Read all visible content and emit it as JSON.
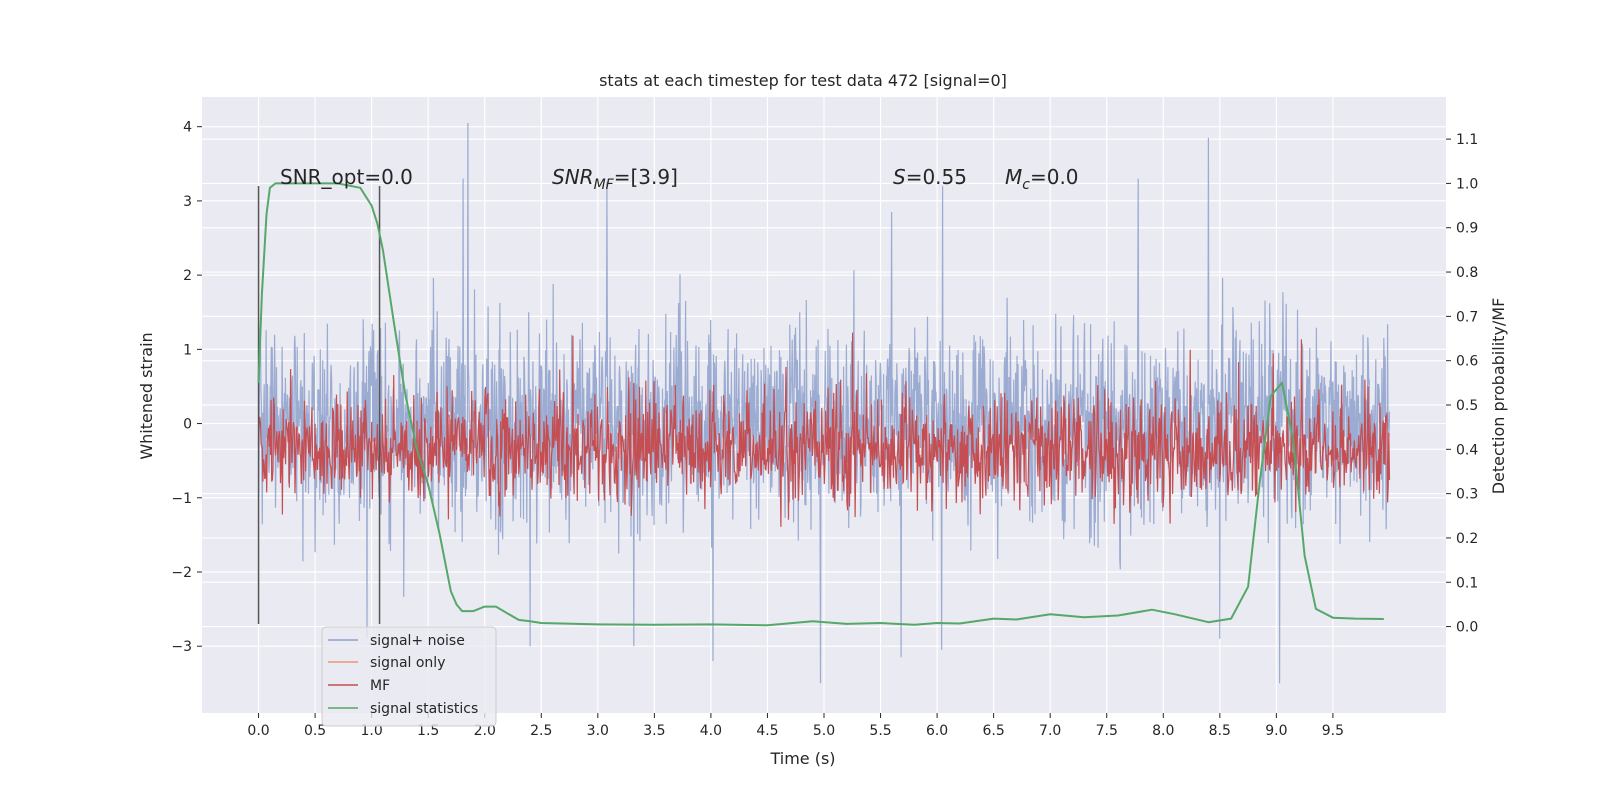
{
  "chart_data": {
    "type": "line",
    "title": "stats at each timestep for test data 472 [signal=0]",
    "xlabel": "Time (s)",
    "ylabel": "Whitened strain",
    "y2label": "Detection probability/MF",
    "xlim": [
      -0.5,
      10.5
    ],
    "ylim": [
      -3.9,
      4.4
    ],
    "y2lim": [
      -0.195,
      1.195
    ],
    "x_ticks": [
      "0.0",
      "0.5",
      "1.0",
      "1.5",
      "2.0",
      "2.5",
      "3.0",
      "3.5",
      "4.0",
      "4.5",
      "5.0",
      "5.5",
      "6.0",
      "6.5",
      "7.0",
      "7.5",
      "8.0",
      "8.5",
      "9.0",
      "9.5"
    ],
    "y_ticks": [
      "−3",
      "−2",
      "−1",
      "0",
      "1",
      "2",
      "3",
      "4"
    ],
    "y2_ticks": [
      "0.0",
      "0.1",
      "0.2",
      "0.3",
      "0.4",
      "0.5",
      "0.6",
      "0.7",
      "0.8",
      "0.9",
      "1.0",
      "1.1"
    ],
    "grid": true,
    "legend_position": "lower-left",
    "legend": [
      "signal+ noise",
      "signal only",
      "MF",
      "signal statistics"
    ],
    "colors": {
      "signal_noise": "#8da0cb",
      "signal_only": "#e9967a",
      "mf": "#c44e52",
      "signal_statistics": "#55a868",
      "background": "#eaeaf2",
      "grid": "#ffffff",
      "vline": "#555555"
    },
    "annotations": {
      "snr_opt": "SNR_opt=0.0",
      "snr_mf_base": "SNR",
      "snr_mf_sub": "MF",
      "snr_mf_value": "=[3.9]",
      "s_var": "S",
      "s_value": "=0.55",
      "mc_var": "M",
      "mc_sub": "c",
      "mc_value": "=0.0"
    },
    "vlines": [
      0.0,
      1.07
    ],
    "vline_yrange": [
      -2.7,
      3.2
    ],
    "series": [
      {
        "name": "signal statistics",
        "axis": "right",
        "x": [
          0.0,
          0.03,
          0.07,
          0.1,
          0.15,
          0.2,
          0.3,
          0.5,
          0.7,
          0.9,
          1.0,
          1.05,
          1.1,
          1.2,
          1.25,
          1.3,
          1.4,
          1.5,
          1.6,
          1.7,
          1.75,
          1.8,
          1.9,
          2.0,
          2.1,
          2.2,
          2.3,
          2.4,
          2.5,
          3.0,
          3.5,
          4.0,
          4.5,
          4.9,
          5.2,
          5.5,
          5.8,
          6.0,
          6.2,
          6.5,
          6.7,
          7.0,
          7.3,
          7.6,
          7.9,
          8.1,
          8.4,
          8.6,
          8.75,
          8.85,
          8.95,
          9.05,
          9.15,
          9.25,
          9.35,
          9.5,
          9.7,
          9.95
        ],
        "y": [
          0.55,
          0.75,
          0.93,
          0.99,
          1.0,
          1.0,
          1.0,
          1.0,
          1.0,
          0.99,
          0.95,
          0.91,
          0.85,
          0.68,
          0.6,
          0.52,
          0.4,
          0.32,
          0.21,
          0.08,
          0.05,
          0.035,
          0.035,
          0.045,
          0.045,
          0.03,
          0.015,
          0.012,
          0.008,
          0.005,
          0.004,
          0.005,
          0.003,
          0.012,
          0.006,
          0.008,
          0.004,
          0.008,
          0.007,
          0.018,
          0.016,
          0.028,
          0.021,
          0.025,
          0.038,
          0.028,
          0.01,
          0.018,
          0.09,
          0.32,
          0.52,
          0.55,
          0.42,
          0.16,
          0.04,
          0.02,
          0.018,
          0.017
        ]
      }
    ],
    "signal_noise_envelope": {
      "x_range": [
        0.0,
        10.0
      ],
      "typical_range": [
        -1.5,
        1.5
      ],
      "spikes": [
        {
          "x": 1.85,
          "y": 4.05
        },
        {
          "x": 1.81,
          "y": 3.3
        },
        {
          "x": 3.08,
          "y": 3.25
        },
        {
          "x": 6.05,
          "y": 3.2
        },
        {
          "x": 8.4,
          "y": 3.85
        },
        {
          "x": 7.78,
          "y": 3.3
        },
        {
          "x": 5.6,
          "y": 2.85
        },
        {
          "x": 2.4,
          "y": -3.0
        },
        {
          "x": 3.32,
          "y": -3.0
        },
        {
          "x": 4.02,
          "y": -3.2
        },
        {
          "x": 4.97,
          "y": -3.5
        },
        {
          "x": 5.68,
          "y": -3.15
        },
        {
          "x": 6.04,
          "y": -3.05
        },
        {
          "x": 9.03,
          "y": -3.5
        },
        {
          "x": 8.5,
          "y": -2.9
        },
        {
          "x": 0.96,
          "y": -2.9
        }
      ]
    },
    "mf_envelope": {
      "x_range": [
        0.0,
        10.0
      ],
      "typical_range": [
        0.0,
        0.6
      ],
      "peak_max": 0.95
    }
  }
}
